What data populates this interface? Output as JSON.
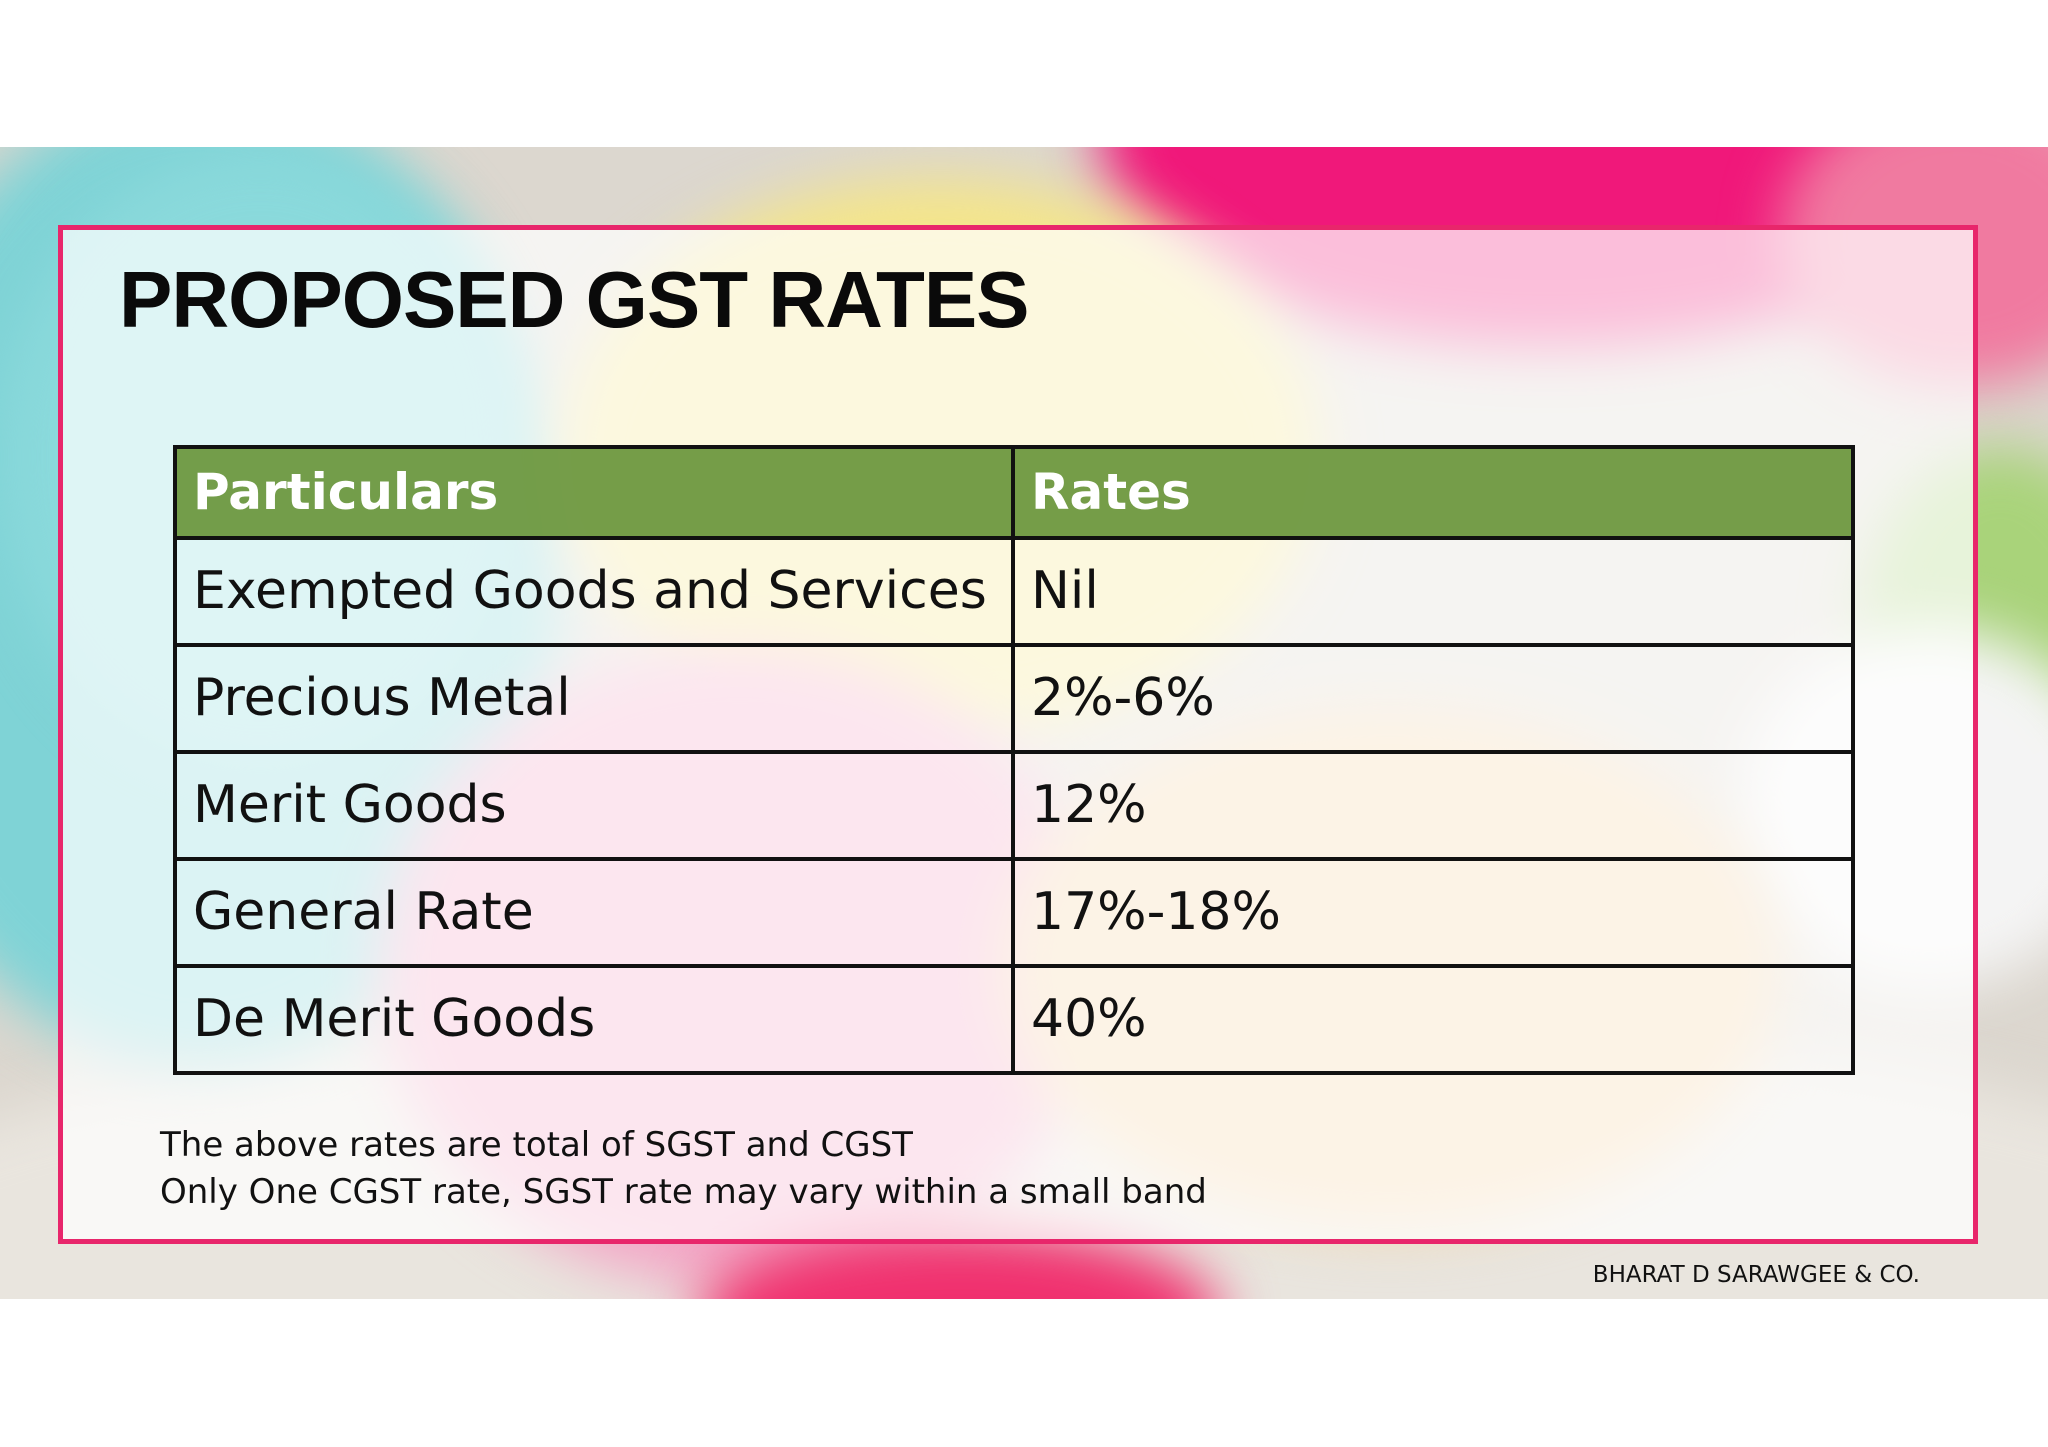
{
  "slide": {
    "title": "PROPOSED GST RATES",
    "accent_color": "#e8266b",
    "header_color": "#6a963c"
  },
  "table": {
    "headers": [
      "Particulars",
      "Rates"
    ],
    "rows": [
      {
        "particular": "Exempted Goods and Services",
        "rate": "Nil"
      },
      {
        "particular": "Precious Metal",
        "rate": "2%-6%"
      },
      {
        "particular": "Merit Goods",
        "rate": "12%"
      },
      {
        "particular": "General Rate",
        "rate": "17%-18%"
      },
      {
        "particular": "De Merit Goods",
        "rate": "40%"
      }
    ]
  },
  "notes": [
    "The above rates are total of SGST and CGST",
    "Only One CGST rate, SGST rate may vary within a small band"
  ],
  "footer": {
    "company": "BHARAT D SARAWGEE & CO."
  }
}
